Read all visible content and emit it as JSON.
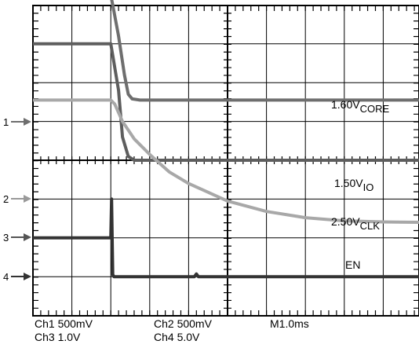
{
  "chart_data": {
    "type": "line",
    "x_unit": "ms",
    "x_range": [
      0,
      10
    ],
    "grid": true,
    "series": [
      {
        "name": "1.60V",
        "name_sub": "CORE",
        "channel_marker": "1",
        "color": "#6e6e6e",
        "points": [
          [
            0,
            4.25
          ],
          [
            2.0,
            4.25
          ],
          [
            2.05,
            4.0
          ],
          [
            2.2,
            3.2
          ],
          [
            2.35,
            2.2
          ],
          [
            2.45,
            1.7
          ],
          [
            2.55,
            1.58
          ],
          [
            2.75,
            1.55
          ],
          [
            10,
            1.55
          ]
        ]
      },
      {
        "name": "1.50V",
        "name_sub": "IO",
        "channel_marker": "2",
        "color": "#5e5e5e",
        "points": [
          [
            0,
            3.0
          ],
          [
            2.0,
            3.0
          ],
          [
            2.05,
            2.7
          ],
          [
            2.2,
            1.8
          ],
          [
            2.3,
            0.6
          ],
          [
            2.45,
            0.1
          ],
          [
            2.6,
            0.0
          ],
          [
            10,
            0.0
          ]
        ]
      },
      {
        "name": "2.50V",
        "name_sub": "CLK",
        "channel_marker": "",
        "color": "#a8a8a8",
        "points": [
          [
            0,
            1.55
          ],
          [
            2.0,
            1.55
          ],
          [
            2.1,
            1.45
          ],
          [
            2.3,
            1.0
          ],
          [
            2.6,
            0.55
          ],
          [
            3.0,
            0.15
          ],
          [
            3.5,
            -0.3
          ],
          [
            4.0,
            -0.6
          ],
          [
            5.0,
            -1.05
          ],
          [
            6.0,
            -1.32
          ],
          [
            7.0,
            -1.48
          ],
          [
            8.0,
            -1.56
          ],
          [
            9.0,
            -1.59
          ],
          [
            10,
            -1.6
          ]
        ]
      },
      {
        "name": "EN",
        "name_sub": "",
        "channel_marker": "4",
        "color": "#333333",
        "points": [
          [
            0,
            -2.0
          ],
          [
            2.0,
            -2.0
          ],
          [
            2.02,
            -1.0
          ],
          [
            2.05,
            -2.95
          ],
          [
            2.08,
            -3.0
          ],
          [
            4.15,
            -3.0
          ],
          [
            4.2,
            -2.93
          ],
          [
            4.25,
            -3.0
          ],
          [
            10,
            -3.0
          ]
        ]
      }
    ],
    "marker_3": "3",
    "annotations": [
      "Ch1 500mV",
      "Ch3 1.0V",
      "Ch2 500mV",
      "Ch4 5.0V",
      "M1.0ms"
    ]
  }
}
